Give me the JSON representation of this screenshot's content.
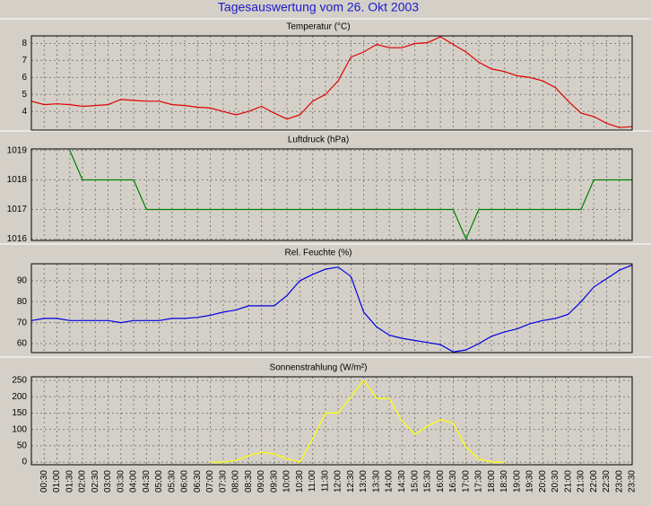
{
  "title": "Tagesauswertung vom 26. Okt 2003",
  "chart_data": [
    {
      "type": "line",
      "title": "Temperatur (°C)",
      "color": "#e00000",
      "grid": true,
      "ylim": [
        2.9,
        8.45
      ],
      "yticks": [
        4,
        5,
        6,
        7,
        8
      ],
      "values": [
        4.6,
        4.4,
        4.45,
        4.4,
        4.3,
        4.35,
        4.4,
        4.7,
        4.65,
        4.6,
        4.6,
        4.4,
        4.35,
        4.25,
        4.2,
        4.0,
        3.8,
        4.0,
        4.3,
        3.9,
        3.55,
        3.8,
        4.6,
        5.0,
        5.8,
        7.2,
        7.5,
        7.95,
        7.75,
        7.75,
        8.0,
        8.05,
        8.4,
        7.95,
        7.5,
        6.9,
        6.5,
        6.35,
        6.1,
        6.0,
        5.8,
        5.4,
        4.6,
        3.9,
        3.7,
        3.3,
        3.05,
        3.1
      ]
    },
    {
      "type": "line",
      "title": "Luftdruck (hPa)",
      "color": "#008000",
      "grid": true,
      "ylim": [
        1015.95,
        1019.05
      ],
      "yticks": [
        1016,
        1017,
        1018,
        1019
      ],
      "values": [
        null,
        null,
        null,
        1019,
        1018,
        1018,
        1018,
        1018,
        1018,
        1017,
        1017,
        1017,
        1017,
        1017,
        1017,
        1017,
        1017,
        1017,
        1017,
        1017,
        1017,
        1017,
        1017,
        1017,
        1017,
        1017,
        1017,
        1017,
        1017,
        1017,
        1017,
        1017,
        1017,
        1017,
        1016,
        1017,
        1017,
        1017,
        1017,
        1017,
        1017,
        1017,
        1017,
        1017,
        1018,
        1018,
        1018,
        1018
      ]
    },
    {
      "type": "line",
      "title": "Rel. Feuchte (%)",
      "color": "#0000e0",
      "grid": true,
      "ylim": [
        55.7,
        98.1
      ],
      "yticks": [
        60,
        70,
        80,
        90
      ],
      "values": [
        71,
        72,
        72,
        71,
        71,
        71,
        71,
        70,
        71,
        71,
        71,
        72,
        72,
        72.5,
        73.5,
        75,
        76,
        78,
        78,
        78,
        83,
        90,
        93,
        95.5,
        96.5,
        92,
        75,
        68,
        64,
        62.5,
        61.5,
        60.5,
        59.5,
        56,
        57,
        60,
        63.5,
        65.5,
        67,
        69.5,
        71,
        72,
        74,
        80,
        87,
        91,
        95,
        97.5
      ]
    },
    {
      "type": "line",
      "title": "Sonnenstrahlung (W/m²)",
      "color": "#ffff00",
      "grid": true,
      "ylim": [
        -8,
        261
      ],
      "yticks": [
        0,
        50,
        100,
        150,
        200,
        250
      ],
      "categories": [
        null,
        "00:30",
        "01:00",
        "01:30",
        "02:00",
        "02:30",
        "03:00",
        "03:30",
        "04:00",
        "04:30",
        "05:00",
        "05:30",
        "06:00",
        "06:30",
        "07:00",
        "07:30",
        "08:00",
        "08:30",
        "09:00",
        "09:30",
        "10:00",
        "10:30",
        "11:00",
        "11:30",
        "12:00",
        "12:30",
        "13:00",
        "13:30",
        "14:00",
        "14:30",
        "15:00",
        "15:30",
        "16:00",
        "16:30",
        "17:00",
        "17:30",
        "18:00",
        "18:30",
        "19:00",
        "19:30",
        "20:00",
        "20:30",
        "21:00",
        "21:30",
        "22:00",
        "22:30",
        "23:00",
        "23:30"
      ],
      "values": [
        null,
        null,
        null,
        null,
        null,
        null,
        null,
        null,
        null,
        null,
        null,
        null,
        null,
        null,
        0,
        0,
        5,
        20,
        30,
        25,
        10,
        0,
        70,
        150,
        150,
        200,
        250,
        195,
        195,
        125,
        85,
        110,
        130,
        120,
        45,
        10,
        0,
        0,
        null,
        null,
        null,
        null,
        null,
        null,
        null,
        null,
        null,
        null
      ]
    }
  ]
}
